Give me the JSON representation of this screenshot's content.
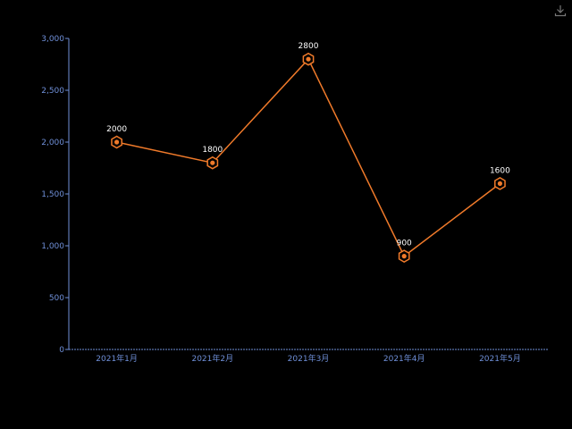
{
  "toolbar": {
    "download_icon": "download-icon"
  },
  "colors": {
    "background": "#000000",
    "line": "#f07a2a",
    "axis": "#6f8fd8",
    "label": "#ffffff"
  },
  "chart_data": {
    "type": "line",
    "categories": [
      "2021年1月",
      "2021年2月",
      "2021年3月",
      "2021年4月",
      "2021年5月"
    ],
    "series": [
      {
        "values": [
          2000,
          1800,
          2800,
          900,
          1600
        ]
      }
    ],
    "data_labels": [
      "2000",
      "1800",
      "2800",
      "900",
      "1600"
    ],
    "y_ticks": [
      "0",
      "500",
      "1,000",
      "1,500",
      "2,000",
      "2,500",
      "3,000"
    ],
    "ylim": [
      0,
      3000
    ],
    "grid": false,
    "marker": "hexagon",
    "legend": "none"
  }
}
